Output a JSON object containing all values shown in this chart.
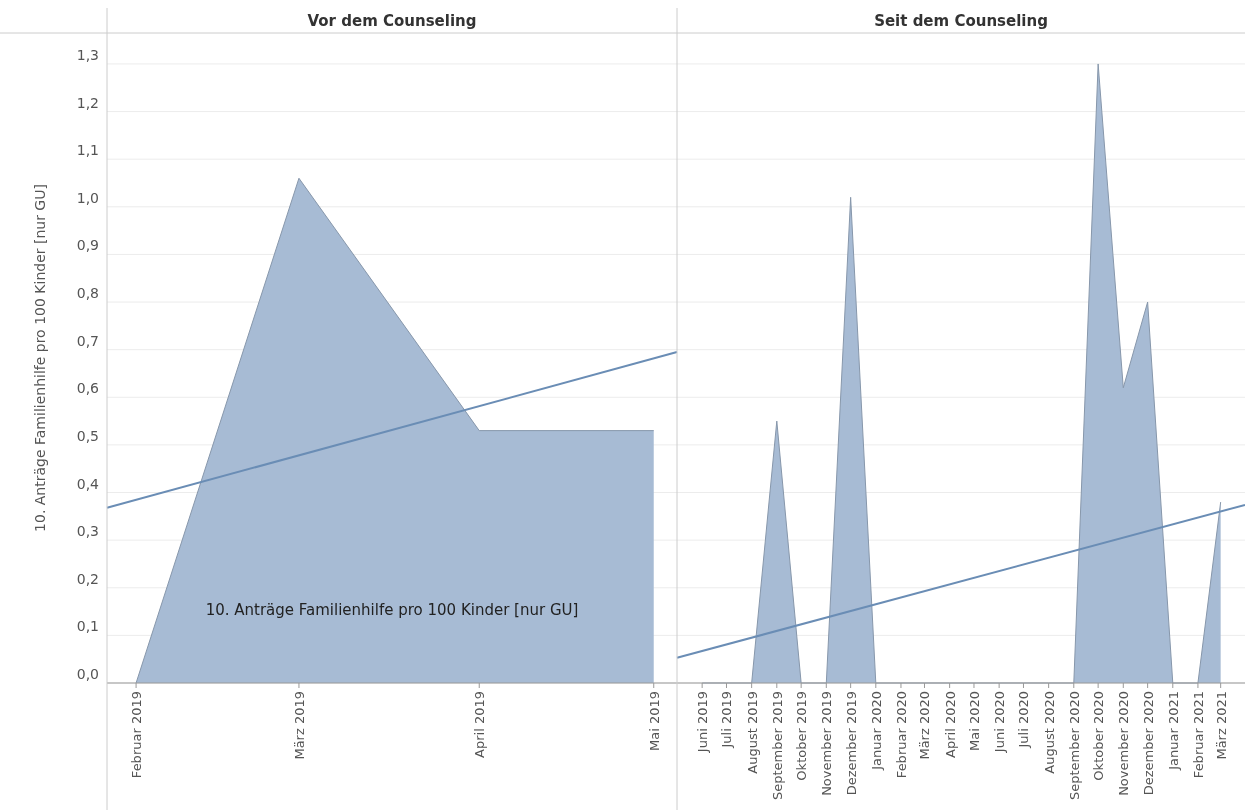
{
  "chart_data": [
    {
      "type": "area",
      "title": "Vor dem Counseling",
      "ylabel": "10. Anträge Familienhilfe pro 100 Kinder [nur GU]",
      "x": [
        "2019-02",
        "2019-03",
        "2019-04",
        "2019-05"
      ],
      "xlim": [
        "2019-01-27",
        "2019-05-05"
      ],
      "xticks": [
        {
          "value": "2019-02",
          "label": "Februar 2019"
        },
        {
          "value": "2019-03",
          "label": "März 2019"
        },
        {
          "value": "2019-04",
          "label": "April 2019"
        },
        {
          "value": "2019-05",
          "label": "Mai 2019"
        }
      ],
      "ylim": [
        0,
        1.365
      ],
      "yticks": [
        {
          "value": 0,
          "label": "0,0"
        },
        {
          "value": 0.1,
          "label": "0,1"
        },
        {
          "value": 0.2,
          "label": "0,2"
        },
        {
          "value": 0.3,
          "label": "0,3"
        },
        {
          "value": 0.4,
          "label": "0,4"
        },
        {
          "value": 0.5,
          "label": "0,5"
        },
        {
          "value": 0.6,
          "label": "0,6"
        },
        {
          "value": 0.7,
          "label": "0,7"
        },
        {
          "value": 0.8,
          "label": "0,8"
        },
        {
          "value": 0.9,
          "label": "0,9"
        },
        {
          "value": 1.0,
          "label": "1,0"
        },
        {
          "value": 1.1,
          "label": "1,1"
        },
        {
          "value": 1.2,
          "label": "1,2"
        },
        {
          "value": 1.3,
          "label": "1,3"
        }
      ],
      "grid": "y",
      "series": [
        {
          "name": "10. Anträge Familienhilfe pro 100 Kinder [nur GU]",
          "color": "#a7bbd4",
          "values": [
            0,
            1.06,
            0.53,
            0.53
          ]
        },
        {
          "type": "line",
          "color": "#6a8db5",
          "x": [
            "2019-01-27",
            "2019-05-05"
          ],
          "values": [
            0.368,
            0.695
          ]
        }
      ]
    },
    {
      "type": "area",
      "title": "Seit dem Counseling",
      "x": [
        "2019-06",
        "2019-07",
        "2019-08",
        "2019-09",
        "2019-10",
        "2019-11",
        "2019-12",
        "2020-01",
        "2020-02",
        "2020-03",
        "2020-04",
        "2020-05",
        "2020-06",
        "2020-07",
        "2020-08",
        "2020-09",
        "2020-10",
        "2020-11",
        "2020-12",
        "2021-01",
        "2021-02",
        "2021-03"
      ],
      "xlim": [
        "2019-05-01",
        "2021-03-31"
      ],
      "xticks": [
        {
          "value": "2019-06",
          "label": "Juni 2019"
        },
        {
          "value": "2019-07",
          "label": "Juli 2019"
        },
        {
          "value": "2019-08",
          "label": "August 2019"
        },
        {
          "value": "2019-09",
          "label": "September 2019"
        },
        {
          "value": "2019-10",
          "label": "Oktober 2019"
        },
        {
          "value": "2019-11",
          "label": "November 2019"
        },
        {
          "value": "2019-12",
          "label": "Dezember 2019"
        },
        {
          "value": "2020-01",
          "label": "Januar 2020"
        },
        {
          "value": "2020-02",
          "label": "Februar 2020"
        },
        {
          "value": "2020-03",
          "label": "März 2020"
        },
        {
          "value": "2020-04",
          "label": "April 2020"
        },
        {
          "value": "2020-05",
          "label": "Mai 2020"
        },
        {
          "value": "2020-06",
          "label": "Juni 2020"
        },
        {
          "value": "2020-07",
          "label": "Juli 2020"
        },
        {
          "value": "2020-08",
          "label": "August 2020"
        },
        {
          "value": "2020-09",
          "label": "September 2020"
        },
        {
          "value": "2020-10",
          "label": "Oktober 2020"
        },
        {
          "value": "2020-11",
          "label": "November 2020"
        },
        {
          "value": "2020-12",
          "label": "Dezember 2020"
        },
        {
          "value": "2021-01",
          "label": "Januar 2021"
        },
        {
          "value": "2021-02",
          "label": "Februar 2021"
        },
        {
          "value": "2021-03",
          "label": "März 2021"
        }
      ],
      "ylim": [
        0,
        1.365
      ],
      "tick_labels": "x",
      "grid": "y",
      "series": [
        {
          "color": "#a7bbd4",
          "values": [
            0,
            0,
            0,
            0.55,
            0,
            0,
            1.02,
            0,
            0,
            0,
            0,
            0,
            0,
            0,
            0,
            0,
            1.3,
            0.62,
            0.8,
            0,
            0,
            0.38
          ]
        },
        {
          "type": "line",
          "color": "#6a8db5",
          "x": [
            "2019-05-01",
            "2021-03-31"
          ],
          "values": [
            0.053,
            0.374
          ]
        }
      ]
    }
  ]
}
